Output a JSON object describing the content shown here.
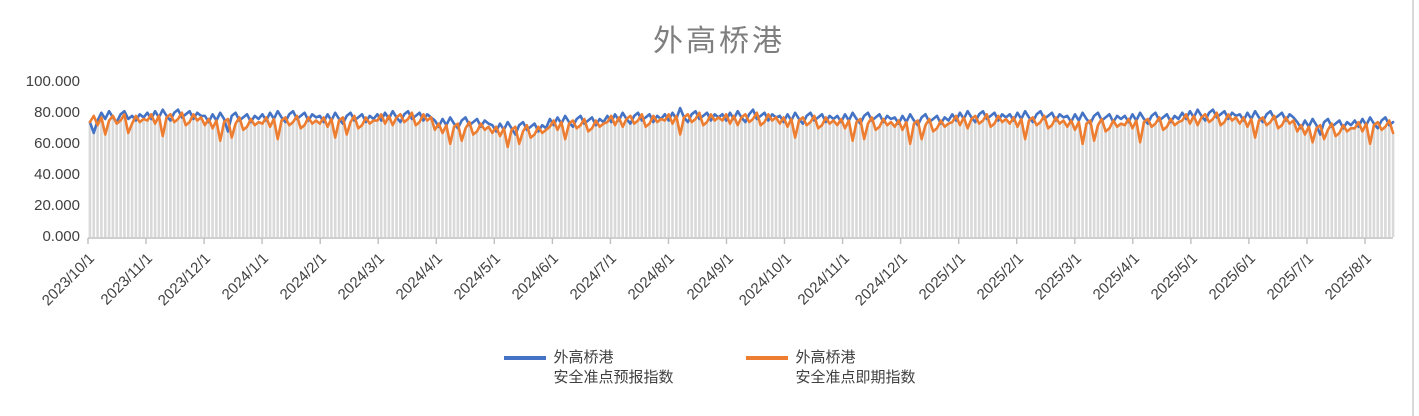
{
  "title": "外高桥港",
  "colors": {
    "forecast_line": "#4472C4",
    "spot_line": "#ED7D31",
    "bars": "#D9D9D9",
    "axis_line": "#BFBFBF",
    "axis_text": "#404040",
    "title_text": "#7F7F7F"
  },
  "legend": {
    "forecast": {
      "line1": "外高桥港",
      "line2": "安全准点预报指数",
      "color": "#4472C4"
    },
    "spot": {
      "line1": "外高桥港",
      "line2": "安全准点即期指数",
      "color": "#ED7D31"
    }
  },
  "chart_data": {
    "type": "line",
    "title": "外高桥港",
    "xlabel": "",
    "ylabel": "",
    "ylim": [
      0,
      100
    ],
    "grid": false,
    "legend_position": "bottom",
    "y_ticks": [
      {
        "value": 0,
        "label": "0.000"
      },
      {
        "value": 20,
        "label": "20.000"
      },
      {
        "value": 40,
        "label": "40.000"
      },
      {
        "value": 60,
        "label": "60.000"
      },
      {
        "value": 80,
        "label": "80.000"
      },
      {
        "value": 100,
        "label": "100.000"
      }
    ],
    "x_tick_labels": [
      "2023/10/1",
      "2023/11/1",
      "2023/12/1",
      "2024/1/1",
      "2024/2/1",
      "2024/3/1",
      "2024/4/1",
      "2024/5/1",
      "2024/6/1",
      "2024/7/1",
      "2024/8/1",
      "2024/9/1",
      "2024/10/1",
      "2024/11/1",
      "2024/12/1",
      "2025/1/1",
      "2025/2/1",
      "2025/3/1",
      "2025/4/1",
      "2025/5/1",
      "2025/6/1",
      "2025/7/1",
      "2025/8/1"
    ],
    "x_start": "2023/10/1",
    "sample_interval_days": 2,
    "background_bars": {
      "color": "#D9D9D9",
      "follows": "min_of_series"
    },
    "series": [
      {
        "name": "外高桥港安全准点预报指数",
        "color": "#4472C4",
        "values": [
          74,
          67,
          75,
          80,
          76,
          81,
          77,
          74,
          79,
          81,
          76,
          78,
          75,
          79,
          77,
          80,
          76,
          81,
          77,
          82,
          78,
          75,
          80,
          82,
          77,
          79,
          81,
          76,
          80,
          78,
          78,
          74,
          79,
          75,
          80,
          76,
          68,
          78,
          80,
          75,
          77,
          79,
          74,
          78,
          76,
          79,
          75,
          80,
          76,
          81,
          77,
          74,
          79,
          81,
          76,
          78,
          80,
          75,
          79,
          77,
          78,
          74,
          79,
          75,
          80,
          76,
          73,
          78,
          80,
          75,
          77,
          79,
          74,
          78,
          76,
          79,
          75,
          80,
          76,
          81,
          77,
          74,
          79,
          81,
          76,
          78,
          80,
          75,
          79,
          77,
          75,
          71,
          76,
          72,
          77,
          73,
          70,
          75,
          77,
          72,
          74,
          76,
          71,
          75,
          73,
          72,
          68,
          73,
          69,
          74,
          70,
          66,
          72,
          74,
          69,
          71,
          73,
          68,
          72,
          70,
          76,
          72,
          77,
          73,
          78,
          74,
          71,
          76,
          78,
          73,
          75,
          77,
          72,
          76,
          74,
          78,
          74,
          79,
          75,
          80,
          76,
          73,
          78,
          80,
          75,
          77,
          79,
          74,
          78,
          76,
          79,
          75,
          80,
          76,
          83,
          77,
          74,
          79,
          81,
          76,
          78,
          80,
          75,
          79,
          77,
          79,
          75,
          80,
          76,
          81,
          77,
          74,
          79,
          82,
          76,
          78,
          80,
          75,
          79,
          77,
          78,
          74,
          79,
          75,
          80,
          76,
          73,
          78,
          80,
          75,
          77,
          79,
          74,
          78,
          76,
          78,
          74,
          79,
          75,
          80,
          76,
          73,
          78,
          80,
          75,
          77,
          79,
          74,
          78,
          76,
          77,
          73,
          78,
          74,
          79,
          75,
          72,
          77,
          79,
          74,
          76,
          78,
          73,
          77,
          75,
          79,
          75,
          80,
          76,
          81,
          77,
          74,
          79,
          81,
          76,
          78,
          80,
          75,
          79,
          77,
          79,
          75,
          80,
          76,
          81,
          77,
          74,
          79,
          81,
          76,
          78,
          80,
          75,
          79,
          77,
          78,
          74,
          79,
          75,
          80,
          76,
          73,
          78,
          80,
          75,
          77,
          79,
          74,
          78,
          76,
          78,
          74,
          79,
          75,
          80,
          76,
          73,
          78,
          80,
          75,
          77,
          79,
          74,
          78,
          76,
          80,
          76,
          81,
          77,
          82,
          78,
          75,
          80,
          82,
          77,
          79,
          81,
          76,
          80,
          78,
          79,
          75,
          80,
          76,
          81,
          77,
          74,
          79,
          81,
          76,
          78,
          80,
          75,
          79,
          77,
          74,
          70,
          75,
          71,
          76,
          72,
          66,
          74,
          76,
          71,
          73,
          75,
          70,
          74,
          72,
          75,
          71,
          76,
          72,
          77,
          73,
          70,
          75,
          77,
          72,
          74
        ]
      },
      {
        "name": "外高桥港安全准点即期指数",
        "color": "#ED7D31",
        "values": [
          74,
          78,
          72,
          77,
          66,
          75,
          78,
          73,
          75,
          79,
          67,
          73,
          78,
          74,
          76,
          75,
          79,
          73,
          78,
          65,
          77,
          79,
          74,
          76,
          80,
          72,
          74,
          79,
          75,
          77,
          72,
          76,
          70,
          75,
          62,
          74,
          76,
          64,
          73,
          77,
          69,
          71,
          76,
          72,
          74,
          73,
          77,
          71,
          76,
          63,
          75,
          77,
          72,
          74,
          78,
          70,
          72,
          77,
          73,
          75,
          73,
          77,
          71,
          76,
          64,
          75,
          77,
          66,
          74,
          78,
          70,
          72,
          77,
          73,
          75,
          75,
          79,
          73,
          78,
          72,
          77,
          79,
          74,
          76,
          80,
          72,
          74,
          79,
          75,
          77,
          69,
          73,
          67,
          72,
          60,
          71,
          73,
          62,
          70,
          74,
          66,
          68,
          73,
          69,
          71,
          67,
          71,
          65,
          70,
          58,
          69,
          71,
          60,
          68,
          72,
          64,
          66,
          71,
          67,
          69,
          71,
          75,
          69,
          74,
          63,
          73,
          75,
          70,
          72,
          76,
          68,
          70,
          75,
          71,
          73,
          74,
          78,
          72,
          77,
          71,
          76,
          78,
          73,
          75,
          79,
          71,
          73,
          78,
          74,
          76,
          75,
          79,
          73,
          78,
          66,
          77,
          79,
          74,
          76,
          80,
          72,
          74,
          79,
          75,
          77,
          75,
          79,
          73,
          78,
          72,
          77,
          79,
          74,
          76,
          80,
          72,
          74,
          79,
          75,
          77,
          73,
          77,
          71,
          76,
          64,
          75,
          77,
          72,
          74,
          78,
          70,
          72,
          77,
          73,
          75,
          72,
          76,
          70,
          75,
          62,
          74,
          76,
          63,
          73,
          77,
          69,
          71,
          76,
          72,
          74,
          71,
          75,
          69,
          74,
          60,
          73,
          75,
          63,
          72,
          76,
          68,
          70,
          75,
          71,
          73,
          74,
          78,
          72,
          77,
          70,
          76,
          78,
          73,
          75,
          79,
          71,
          73,
          78,
          74,
          76,
          73,
          77,
          71,
          76,
          63,
          75,
          77,
          72,
          74,
          78,
          70,
          72,
          77,
          73,
          75,
          71,
          75,
          69,
          74,
          60,
          73,
          75,
          62,
          72,
          76,
          68,
          70,
          75,
          71,
          73,
          72,
          76,
          70,
          75,
          61,
          74,
          76,
          71,
          73,
          77,
          69,
          71,
          76,
          72,
          74,
          75,
          79,
          73,
          78,
          72,
          77,
          79,
          74,
          76,
          80,
          72,
          74,
          79,
          75,
          77,
          73,
          77,
          71,
          76,
          64,
          75,
          77,
          72,
          74,
          78,
          70,
          72,
          77,
          73,
          75,
          68,
          72,
          66,
          71,
          61,
          70,
          72,
          63,
          69,
          73,
          65,
          67,
          72,
          68,
          70,
          70,
          74,
          68,
          73,
          60,
          72,
          74,
          69,
          71,
          75,
          67
        ]
      }
    ]
  }
}
